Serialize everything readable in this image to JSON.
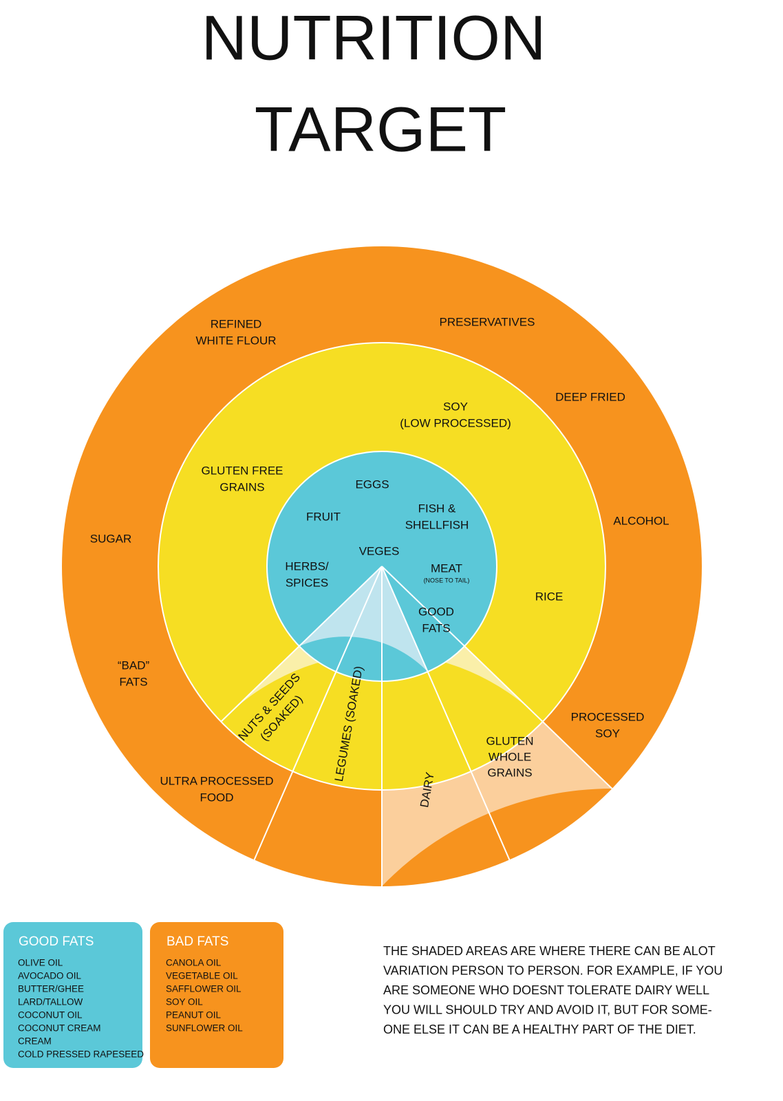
{
  "title": {
    "line1": "NUTRITION",
    "line2": "TARGET"
  },
  "outer_ring": {
    "labels": [
      [
        "REFINED",
        "WHITE FLOUR"
      ],
      [
        "PRESERVATIVES"
      ],
      [
        "DEEP FRIED"
      ],
      [
        "ALCOHOL"
      ],
      [
        "SUGAR"
      ],
      [
        "“BAD”",
        "FATS"
      ],
      [
        "PROCESSED",
        "SOY"
      ],
      [
        "ULTRA PROCESSED",
        "FOOD"
      ]
    ]
  },
  "middle_ring": {
    "labels": [
      [
        "SOY",
        "(LOW PROCESSED)"
      ],
      [
        "GLUTEN FREE",
        "GRAINS"
      ],
      [
        "RICE"
      ]
    ]
  },
  "center": {
    "labels": [
      [
        "EGGS"
      ],
      [
        "FRUIT"
      ],
      [
        "FISH &",
        "SHELLFISH"
      ],
      [
        "VEGES"
      ],
      [
        "HERBS/",
        "SPICES"
      ],
      [
        "MEAT",
        "(NOSE TO TAIL)"
      ],
      [
        "GOOD",
        "FATS"
      ]
    ]
  },
  "shaded": {
    "labels": [
      [
        "NUTS & SEEDS",
        "(SOAKED)"
      ],
      [
        "LEGUMES (SOAKED)"
      ],
      [
        "DAIRY"
      ],
      [
        "GLUTEN",
        "WHOLE",
        "GRAINS"
      ]
    ]
  },
  "legend": {
    "good": {
      "title": "GOOD FATS",
      "items": [
        "OLIVE OIL",
        "AVOCADO OIL",
        "BUTTER/GHEE",
        "LARD/TALLOW",
        "COCONUT OIL",
        "COCONUT CREAM",
        "CREAM",
        "COLD PRESSED RAPESEED"
      ]
    },
    "bad": {
      "title": "BAD FATS",
      "items": [
        "CANOLA OIL",
        "VEGETABLE OIL",
        "SAFFLOWER OIL",
        "SOY OIL",
        "PEANUT OIL",
        "SUNFLOWER OIL"
      ]
    }
  },
  "note": [
    "THE SHADED AREAS ARE WHERE THERE CAN BE ALOT",
    "VARIATION PERSON TO PERSON.  FOR EXAMPLE, IF YOU",
    "ARE SOMEONE WHO DOESNT TOLERATE DAIRY WELL",
    "YOU WILL SHOULD TRY AND AVOID IT, BUT FOR SOME-",
    "ONE ELSE IT CAN BE A HEALTHY PART OF THE DIET."
  ]
}
